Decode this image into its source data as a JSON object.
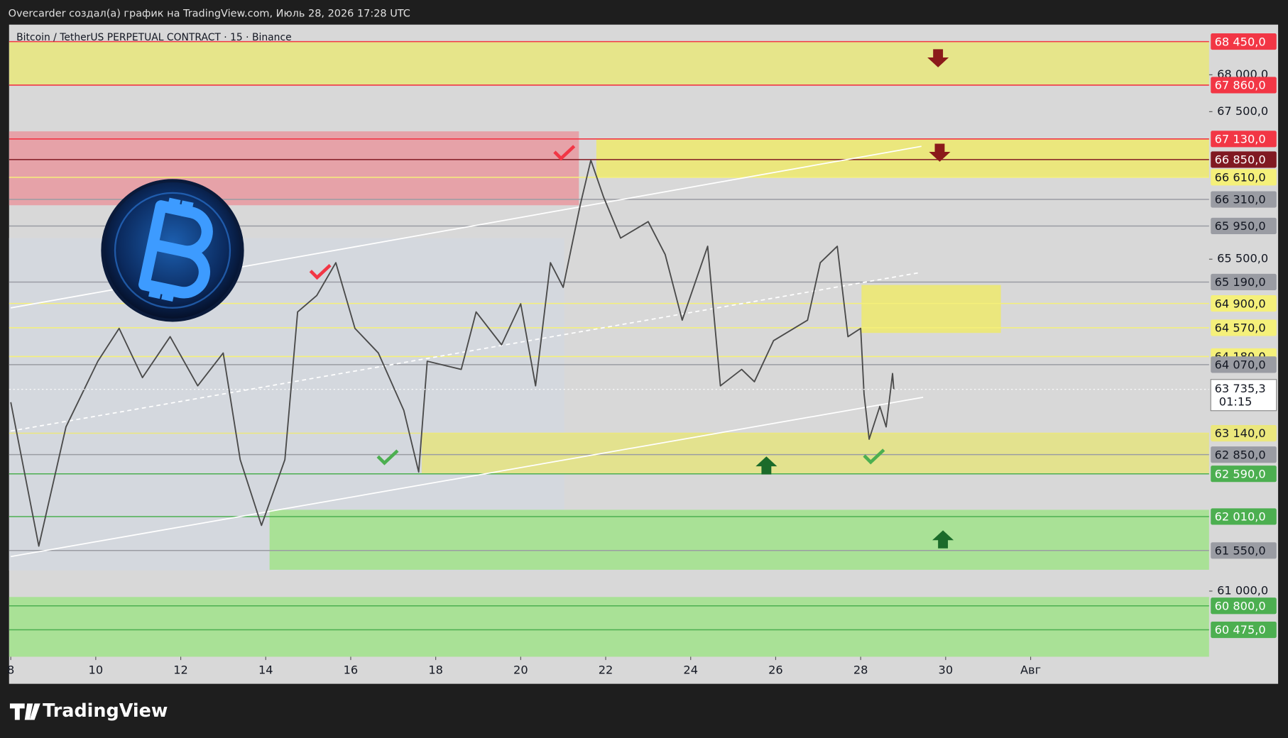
{
  "header": "Overcarder создал(а) график на TradingView.com, Июль 28, 2026 17:28 UTC",
  "footer": "TradingView",
  "chart_data": {
    "type": "line",
    "title": "Bitcoin / TetherUS PERPETUAL CONTRACT · 15 · Binance",
    "color": "#4a4a4a",
    "x": [
      8.0,
      8.66,
      9.3,
      10.05,
      10.55,
      11.1,
      11.75,
      12.4,
      13.0,
      13.4,
      13.9,
      14.45,
      14.75,
      15.2,
      15.65,
      16.1,
      16.65,
      17.25,
      17.6,
      17.8,
      18.6,
      18.95,
      19.55,
      20.0,
      20.35,
      20.7,
      21.0,
      21.4,
      21.65,
      21.95,
      22.35,
      23.0,
      23.4,
      23.8,
      24.4,
      24.7,
      25.2,
      25.5,
      25.95,
      26.75,
      27.05,
      27.45,
      27.7,
      28.0,
      28.08,
      28.2,
      28.45,
      28.6,
      28.75,
      28.78
    ],
    "values": [
      63560,
      61610,
      63226,
      64117,
      64562,
      63894,
      64450,
      63783,
      64228,
      62781,
      61891,
      62781,
      64784,
      65007,
      65452,
      64562,
      64228,
      63449,
      62614,
      64117,
      64005,
      64784,
      64339,
      64895,
      63783,
      65452,
      65118,
      66231,
      66843,
      66342,
      65786,
      66009,
      65563,
      64673,
      65675,
      63783,
      64005,
      63838,
      64395,
      64673,
      65452,
      65675,
      64450,
      64562,
      63671,
      63059,
      63504,
      63226,
      63950,
      63735.3
    ],
    "xlim": [
      7.96,
      36.2
    ],
    "xticks": [
      8,
      10,
      12,
      14,
      16,
      18,
      20,
      22,
      24,
      26,
      28,
      30,
      {
        "value": 32,
        "label": "Авг"
      }
    ],
    "ylim": [
      60110,
      68680
    ],
    "yticks": [
      {
        "value": 68000,
        "label": "68 000,0"
      },
      {
        "value": 67500,
        "label": "67 500,0"
      },
      {
        "value": 65500,
        "label": "65 500,0"
      },
      {
        "value": 61000,
        "label": "61 000,0"
      }
    ],
    "zones": [
      {
        "x": [
          7.96,
          36.2
        ],
        "y": [
          68450,
          67860
        ],
        "color": "#e6e58a"
      },
      {
        "x": [
          7.96,
          21.37
        ],
        "y": [
          67233,
          66231
        ],
        "color": "#e6a2a8"
      },
      {
        "x": [
          21.78,
          36.2
        ],
        "y": [
          67130,
          66610
        ],
        "color": "#ebe77d"
      },
      {
        "x": [
          28.02,
          31.3
        ],
        "y": [
          65150,
          64500
        ],
        "color": "#ebe77d"
      },
      {
        "x": [
          17.67,
          36.2
        ],
        "y": [
          63140,
          62590
        ],
        "color": "#e3e28e"
      },
      {
        "x": [
          14.09,
          36.2
        ],
        "y": [
          62102,
          61289
        ],
        "color": "#a9e196"
      },
      {
        "x": [
          7.96,
          36.2
        ],
        "y": [
          60920,
          60110
        ],
        "color": "#a9e196"
      }
    ],
    "trendlines": [
      {
        "x": [
          8,
          29.43
        ],
        "y": [
          64840,
          67030
        ],
        "dashed": false
      },
      {
        "x": [
          8,
          29.47
        ],
        "y": [
          61468,
          63627
        ],
        "dashed": false
      },
      {
        "x": [
          8,
          29.4
        ],
        "y": [
          63170,
          65319
        ],
        "dashed": true
      }
    ],
    "levels": [
      {
        "value": 68450,
        "label": "68 450,0",
        "color": "#f23645",
        "text_color": "#ffffff"
      },
      {
        "value": 67860,
        "label": "67 860,0",
        "color": "#f23645",
        "text_color": "#ffffff"
      },
      {
        "value": 67130,
        "label": "67 130,0",
        "color": "#f23645",
        "text_color": "#ffffff"
      },
      {
        "value": 66850,
        "label": "66 850,0",
        "color": "#801922",
        "text_color": "#ffffff"
      },
      {
        "value": 66610,
        "label": "66 610,0",
        "color": "#f5f07a",
        "text_color": "#131722"
      },
      {
        "value": 66310,
        "label": "66 310,0",
        "color": "#9a9ca3",
        "text_color": "#131722"
      },
      {
        "value": 65950,
        "label": "65 950,0",
        "color": "#9a9ca3",
        "text_color": "#131722"
      },
      {
        "value": 65190,
        "label": "65 190,0",
        "color": "#9a9ca3",
        "text_color": "#131722"
      },
      {
        "value": 64900,
        "label": "64 900,0",
        "color": "#f5f07a",
        "text_color": "#131722"
      },
      {
        "value": 64570,
        "label": "64 570,0",
        "color": "#f5f07a",
        "text_color": "#131722"
      },
      {
        "value": 64180,
        "label": "64 180,0",
        "color": "#f5f07a",
        "text_color": "#131722"
      },
      {
        "value": 64070,
        "label": "64 070,0",
        "color": "#9a9ca3",
        "text_color": "#131722"
      },
      {
        "value": 63140,
        "label": "63 140,0",
        "color": "#ebe77d",
        "text_color": "#131722"
      },
      {
        "value": 62850,
        "label": "62 850,0",
        "color": "#9a9ca3",
        "text_color": "#131722"
      },
      {
        "value": 62590,
        "label": "62 590,0",
        "color": "#4caf50",
        "text_color": "#ffffff"
      },
      {
        "value": 62010,
        "label": "62 010,0",
        "color": "#4caf50",
        "text_color": "#ffffff"
      },
      {
        "value": 61550,
        "label": "61 550,0",
        "color": "#9a9ca3",
        "text_color": "#131722"
      },
      {
        "value": 60800,
        "label": "60 800,0",
        "color": "#4caf50",
        "text_color": "#ffffff"
      },
      {
        "value": 60475,
        "label": "60 475,0",
        "color": "#4caf50",
        "text_color": "#ffffff"
      }
    ],
    "current": {
      "value": 63735.3,
      "label": "63 735,3",
      "countdown": "01:15"
    }
  }
}
